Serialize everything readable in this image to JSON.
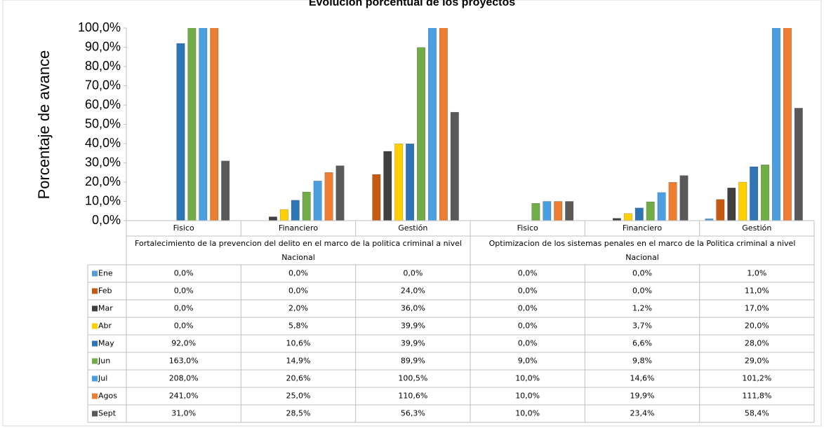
{
  "chart_data": {
    "type": "bar",
    "title": "Evolución porcentual de los proyectos",
    "y_label": "Porcentaje de avance",
    "groups": [
      {
        "name": "Fortalecimiento de la prevencion del delito en el marco de la politica criminal a nivel Nacional",
        "categories": [
          "Fisico",
          "Financiero",
          "Gestión"
        ]
      },
      {
        "name": "Optimizacion de los sistemas penales en el marco de la Politica criminal a nivel Nacional",
        "categories": [
          "Fisico",
          "Financiero",
          "Gestión"
        ]
      }
    ],
    "series": [
      {
        "name": "Ene",
        "color": "#5b9bd5",
        "values": [
          0,
          0,
          0,
          0,
          0,
          1
        ],
        "value_labels": [
          "0,0%",
          "0,0%",
          "0,0%",
          "0,0%",
          "0,0%",
          "1,0%"
        ]
      },
      {
        "name": "Feb",
        "color": "#c55a11",
        "values": [
          0,
          0,
          24,
          0,
          0,
          11
        ],
        "value_labels": [
          "0,0%",
          "0,0%",
          "24,0%",
          "0,0%",
          "0,0%",
          "11,0%"
        ]
      },
      {
        "name": "Mar",
        "color": "#404040",
        "values": [
          0,
          2,
          36,
          0,
          1.2,
          17
        ],
        "value_labels": [
          "0,0%",
          "2,0%",
          "36,0%",
          "0,0%",
          "1,2%",
          "17,0%"
        ]
      },
      {
        "name": "Abr",
        "color": "#ffd000",
        "values": [
          0,
          5.8,
          39.9,
          0,
          3.7,
          20
        ],
        "value_labels": [
          "0,0%",
          "5,8%",
          "39,9%",
          "0,0%",
          "3,7%",
          "20,0%"
        ]
      },
      {
        "name": "May",
        "color": "#2e75b6",
        "values": [
          92,
          10.6,
          39.9,
          0,
          6.6,
          28
        ],
        "value_labels": [
          "92,0%",
          "10,6%",
          "39,9%",
          "0,0%",
          "6,6%",
          "28,0%"
        ]
      },
      {
        "name": "Jun",
        "color": "#70ad47",
        "values": [
          163,
          14.9,
          89.9,
          9,
          9.8,
          29
        ],
        "value_labels": [
          "163,0%",
          "14,9%",
          "89,9%",
          "9,0%",
          "9,8%",
          "29,0%"
        ]
      },
      {
        "name": "Jul",
        "color": "#4a9fe0",
        "values": [
          208,
          20.6,
          100.5,
          10,
          14.6,
          101.2
        ],
        "value_labels": [
          "208,0%",
          "20,6%",
          "100,5%",
          "10,0%",
          "14,6%",
          "101,2%"
        ]
      },
      {
        "name": "Agos",
        "color": "#ed7d31",
        "values": [
          241,
          25,
          110.6,
          10,
          19.9,
          111.8
        ],
        "value_labels": [
          "241,0%",
          "25,0%",
          "110,6%",
          "10,0%",
          "19,9%",
          "111,8%"
        ]
      },
      {
        "name": "Sept",
        "color": "#595959",
        "values": [
          31,
          28.5,
          56.3,
          10,
          23.4,
          58.4
        ],
        "value_labels": [
          "31,0%",
          "28,5%",
          "56,3%",
          "10,0%",
          "23,4%",
          "58,4%"
        ]
      }
    ],
    "ylim": [
      0,
      100
    ],
    "yticks": [
      {
        "value": 0,
        "label": "0,0%"
      },
      {
        "value": 10,
        "label": "10,0%"
      },
      {
        "value": 20,
        "label": "20,0%"
      },
      {
        "value": 30,
        "label": "30,0%"
      },
      {
        "value": 40,
        "label": "40,0%"
      },
      {
        "value": 50,
        "label": "50,0%"
      },
      {
        "value": 60,
        "label": "60,0%"
      },
      {
        "value": 70,
        "label": "70,0%"
      },
      {
        "value": 80,
        "label": "80,0%"
      },
      {
        "value": 90,
        "label": "90,0%"
      },
      {
        "value": 100,
        "label": "100,0%"
      }
    ],
    "grid": false
  }
}
